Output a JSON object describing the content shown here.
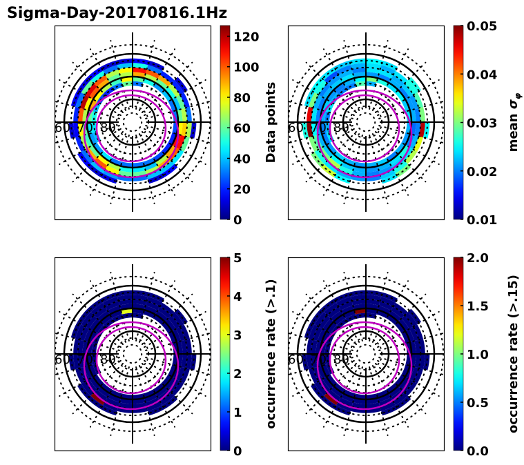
{
  "figure": {
    "title": "Sigma-Day-20170816.1Hz"
  },
  "chart_data": [
    {
      "type": "heatmap",
      "projection": "polar (magnetic latitude / MLT dial)",
      "title": "",
      "panel": "top-left",
      "lat_labels": [
        "60",
        "70",
        "80"
      ],
      "lat_rings": [
        60,
        70,
        80
      ],
      "colorbar": {
        "label": "Data points",
        "range": [
          0,
          127
        ],
        "ticks": [
          0,
          20,
          40,
          60,
          80,
          100,
          120
        ],
        "tick_labels": [
          "0",
          "20",
          "40",
          "60",
          "80",
          "100",
          "120"
        ],
        "colormap": "jet"
      },
      "bands": [
        {
          "lat": [
            72,
            74
          ],
          "values": [
            null,
            null,
            null,
            null,
            null,
            null,
            null,
            null,
            null,
            null,
            null,
            30,
            60,
            30,
            20,
            25,
            40,
            50,
            45,
            40,
            null,
            null,
            null,
            null
          ]
        },
        {
          "lat": [
            70,
            72
          ],
          "values": [
            30,
            30,
            25,
            20,
            20,
            25,
            30,
            30,
            40,
            35,
            50,
            60,
            80,
            55,
            70,
            80,
            90,
            60,
            45,
            35,
            35,
            45,
            30,
            30
          ]
        },
        {
          "lat": [
            68,
            70
          ],
          "values": [
            45,
            40,
            70,
            90,
            110,
            80,
            60,
            40,
            50,
            60,
            70,
            90,
            70,
            60,
            90,
            100,
            80,
            70,
            60,
            55,
            60,
            80,
            70,
            50
          ]
        },
        {
          "lat": [
            66,
            68
          ],
          "values": [
            60,
            70,
            90,
            100,
            110,
            85,
            70,
            60,
            70,
            90,
            100,
            110,
            80,
            70,
            100,
            115,
            120,
            100,
            80,
            70,
            90,
            100,
            80,
            60
          ]
        },
        {
          "lat": [
            64,
            66
          ],
          "values": [
            30,
            40,
            40,
            45,
            60,
            70,
            30,
            20,
            20,
            20,
            30,
            50,
            40,
            30,
            50,
            60,
            30,
            20,
            15,
            20,
            30,
            40,
            35,
            30
          ]
        },
        {
          "lat": [
            62,
            64
          ],
          "values": [
            null,
            10,
            15,
            null,
            null,
            10,
            null,
            null,
            10,
            null,
            10,
            15,
            10,
            10,
            15,
            12,
            15,
            null,
            10,
            null,
            15,
            10,
            12,
            null
          ]
        }
      ]
    },
    {
      "type": "heatmap",
      "projection": "polar (magnetic latitude / MLT dial)",
      "panel": "top-right",
      "lat_labels": [
        "60",
        "70",
        "80"
      ],
      "lat_rings": [
        60,
        70,
        80
      ],
      "colorbar": {
        "label": "mean σ_φ",
        "range": [
          0.01,
          0.05
        ],
        "ticks": [
          0.01,
          0.02,
          0.03,
          0.04,
          0.05
        ],
        "tick_labels": [
          "0.01",
          "0.02",
          "0.03",
          "0.04",
          "0.05"
        ],
        "colormap": "jet"
      },
      "bands": [
        {
          "lat": [
            72,
            74
          ],
          "values": [
            null,
            null,
            null,
            null,
            null,
            null,
            null,
            null,
            null,
            null,
            null,
            0.022,
            0.028,
            0.02,
            0.02,
            0.022,
            0.024,
            0.02,
            0.022,
            0.024,
            null,
            null,
            null,
            null
          ]
        },
        {
          "lat": [
            70,
            72
          ],
          "values": [
            0.022,
            0.023,
            0.02,
            0.022,
            0.021,
            0.022,
            0.024,
            0.023,
            0.025,
            0.024,
            0.026,
            0.03,
            0.025,
            0.022,
            0.02,
            0.021,
            0.023,
            0.022,
            0.02,
            0.02,
            0.021,
            0.023,
            0.022,
            0.021
          ]
        },
        {
          "lat": [
            68,
            70
          ],
          "values": [
            0.021,
            0.022,
            0.024,
            0.026,
            0.02,
            0.019,
            0.022,
            0.021,
            0.02,
            0.022,
            0.02,
            0.021,
            0.022,
            0.024,
            0.023,
            0.022,
            0.02,
            0.02,
            0.021,
            0.022,
            0.023,
            0.025,
            0.023,
            0.022
          ]
        },
        {
          "lat": [
            66,
            68
          ],
          "values": [
            0.02,
            0.021,
            0.023,
            0.024,
            0.022,
            0.02,
            0.02,
            0.021,
            0.023,
            0.022,
            0.024,
            0.024,
            0.02,
            0.022,
            0.021,
            0.02,
            0.022,
            0.024,
            0.025,
            0.028,
            0.03,
            0.032,
            0.026,
            0.022
          ]
        },
        {
          "lat": [
            64,
            66
          ],
          "values": [
            0.02,
            0.023,
            0.026,
            0.032,
            0.034,
            0.048,
            0.03,
            0.028,
            0.026,
            0.024,
            0.022,
            0.024,
            0.022,
            0.02,
            0.018,
            0.026,
            0.03,
            0.046,
            0.05,
            0.03,
            0.026,
            0.024,
            0.022,
            0.021
          ]
        },
        {
          "lat": [
            62,
            64
          ],
          "values": [
            null,
            0.024,
            0.03,
            null,
            null,
            0.025,
            null,
            null,
            0.026,
            null,
            0.024,
            0.025,
            0.024,
            0.023,
            0.024,
            0.025,
            0.024,
            null,
            0.026,
            null,
            0.03,
            0.033,
            0.025,
            null
          ]
        }
      ]
    },
    {
      "type": "heatmap",
      "projection": "polar (magnetic latitude / MLT dial)",
      "panel": "bottom-left",
      "lat_labels": [
        "60",
        "70",
        "80"
      ],
      "lat_rings": [
        60,
        70,
        80
      ],
      "colorbar": {
        "label": "occurrence rate (>.1)",
        "range": [
          0,
          5
        ],
        "ticks": [
          0,
          1,
          2,
          3,
          4,
          5
        ],
        "tick_labels": [
          "0",
          "1",
          "2",
          "3",
          "4",
          "5"
        ],
        "colormap": "jet"
      },
      "bands": [
        {
          "lat": [
            72,
            74
          ],
          "values": [
            null,
            null,
            null,
            null,
            null,
            null,
            null,
            null,
            null,
            null,
            null,
            0,
            0,
            0,
            0,
            0,
            0,
            0,
            0,
            0,
            null,
            null,
            null,
            null
          ]
        },
        {
          "lat": [
            70,
            72
          ],
          "values": [
            0,
            0,
            0,
            0,
            0,
            0,
            0,
            0,
            0,
            0,
            0,
            0,
            3,
            0,
            0,
            0,
            0,
            0,
            0,
            0,
            0,
            0,
            0,
            0
          ]
        },
        {
          "lat": [
            68,
            70
          ],
          "values": [
            0,
            0,
            0,
            0,
            0,
            0,
            0,
            0,
            0,
            0,
            0,
            0,
            0,
            0,
            0,
            0,
            0,
            0,
            0,
            0,
            0,
            0,
            0,
            0
          ]
        },
        {
          "lat": [
            66,
            68
          ],
          "values": [
            0,
            0,
            0,
            0,
            0,
            0,
            0,
            0,
            0,
            0,
            0,
            0,
            0,
            0,
            0,
            0,
            0,
            0,
            0,
            0,
            0,
            0,
            0,
            0
          ]
        },
        {
          "lat": [
            64,
            66
          ],
          "values": [
            0,
            0,
            0,
            0,
            0,
            0,
            0,
            0,
            0,
            0,
            0,
            0,
            0,
            0,
            0,
            0,
            0,
            0,
            0,
            0,
            0,
            5,
            0,
            0
          ]
        },
        {
          "lat": [
            62,
            64
          ],
          "values": [
            null,
            0,
            0,
            null,
            null,
            0,
            null,
            null,
            0,
            null,
            0,
            0,
            0,
            0,
            0,
            0,
            0,
            null,
            0,
            null,
            0,
            0,
            0,
            null
          ]
        }
      ]
    },
    {
      "type": "heatmap",
      "projection": "polar (magnetic latitude / MLT dial)",
      "panel": "bottom-right",
      "lat_labels": [
        "60",
        "70",
        "80"
      ],
      "lat_rings": [
        60,
        70,
        80
      ],
      "colorbar": {
        "label": "occurrence rate (>.15)",
        "range": [
          0,
          2
        ],
        "ticks": [
          0,
          0.5,
          1.0,
          1.5,
          2.0
        ],
        "tick_labels": [
          "0.0",
          "0.5",
          "1.0",
          "1.5",
          "2.0"
        ],
        "colormap": "jet"
      },
      "bands": [
        {
          "lat": [
            72,
            74
          ],
          "values": [
            null,
            null,
            null,
            null,
            null,
            null,
            null,
            null,
            null,
            null,
            null,
            0,
            0,
            0,
            0,
            0,
            0,
            0,
            0,
            0,
            null,
            null,
            null,
            null
          ]
        },
        {
          "lat": [
            70,
            72
          ],
          "values": [
            0,
            0,
            0,
            0,
            0,
            0,
            0,
            0,
            0,
            0,
            0,
            0,
            2,
            0,
            0,
            0,
            0,
            0,
            0,
            0,
            0,
            0,
            0,
            0
          ]
        },
        {
          "lat": [
            68,
            70
          ],
          "values": [
            0,
            0,
            0,
            0,
            0,
            0,
            0,
            0,
            0,
            0,
            0,
            0,
            0,
            0,
            0,
            0,
            0,
            0,
            0,
            0,
            0,
            0,
            0,
            0
          ]
        },
        {
          "lat": [
            66,
            68
          ],
          "values": [
            0,
            0,
            0,
            0,
            0,
            0,
            0,
            0,
            0,
            0,
            0,
            0,
            0,
            0,
            0,
            0,
            0,
            0,
            0,
            0,
            0,
            0,
            0,
            0
          ]
        },
        {
          "lat": [
            64,
            66
          ],
          "values": [
            0,
            0,
            0,
            0,
            0,
            0,
            0,
            0,
            0,
            0,
            0,
            0,
            0,
            0,
            0,
            0,
            0,
            0,
            0,
            0,
            0,
            2,
            0,
            0
          ]
        },
        {
          "lat": [
            62,
            64
          ],
          "values": [
            null,
            0,
            0,
            null,
            null,
            0,
            null,
            null,
            0,
            null,
            0,
            0,
            0,
            0,
            0,
            0,
            0,
            null,
            0,
            null,
            0,
            0,
            0,
            null
          ]
        }
      ]
    }
  ],
  "overlay": {
    "oval_color": "#c000c0",
    "grid_color": "#000000"
  }
}
